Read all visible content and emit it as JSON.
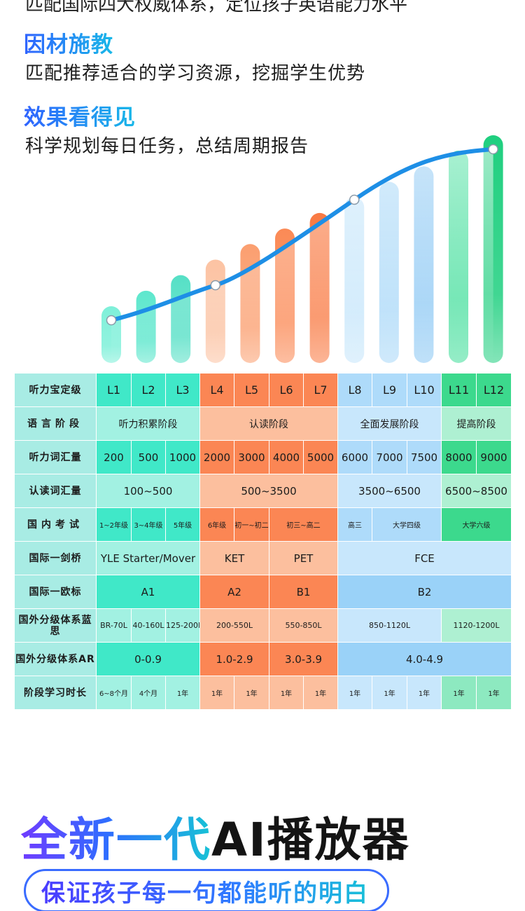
{
  "top_cut_text": "匹配国际四大权威体系，定位孩子英语能力水平",
  "features": [
    {
      "title": "因材施教",
      "desc": "匹配推荐适合的学习资源，挖掘学生优势"
    },
    {
      "title": "效果看得见",
      "desc": "科学规划每日任务，总结周期报告"
    }
  ],
  "chart_data": {
    "type": "bar",
    "categories": [
      "L1",
      "L2",
      "L3",
      "L4",
      "L5",
      "L6",
      "L7",
      "L8",
      "L9",
      "L10",
      "L11",
      "L12"
    ],
    "values": [
      1,
      2,
      3,
      4,
      5,
      6,
      7,
      8,
      9,
      10,
      11,
      12
    ],
    "bar_colors": [
      "#7ef0d9",
      "#5ee7cd",
      "#56e0c6",
      "#fcc3a3",
      "#fb9f70",
      "#fb8a56",
      "#f97a43",
      "#c6e6fb",
      "#a9d8f8",
      "#8cc8f4",
      "#40de9a",
      "#1fcf7f"
    ],
    "trend_line_color": "#1e8fe6"
  },
  "table": {
    "rows": [
      {
        "header": "听力宝定级",
        "cells": [
          {
            "text": "L1",
            "span": 1,
            "cls": "g1 f16"
          },
          {
            "text": "L2",
            "span": 1,
            "cls": "g1 f16"
          },
          {
            "text": "L3",
            "span": 1,
            "cls": "g1 f16"
          },
          {
            "text": "L4",
            "span": 1,
            "cls": "o1 f16"
          },
          {
            "text": "L5",
            "span": 1,
            "cls": "o1 f16"
          },
          {
            "text": "L6",
            "span": 1,
            "cls": "o1 f16"
          },
          {
            "text": "L7",
            "span": 1,
            "cls": "o1 f16"
          },
          {
            "text": "L8",
            "span": 1,
            "cls": "b1 f16"
          },
          {
            "text": "L9",
            "span": 1,
            "cls": "b1 f16"
          },
          {
            "text": "L10",
            "span": 1,
            "cls": "b1 f16"
          },
          {
            "text": "L11",
            "span": 1,
            "cls": "e1 f16"
          },
          {
            "text": "L12",
            "span": 1,
            "cls": "e1 f16"
          }
        ]
      },
      {
        "header": "语言阶段",
        "cells": [
          {
            "text": "听力积累阶段",
            "span": 3,
            "cls": "g2 f14"
          },
          {
            "text": "认读阶段",
            "span": 4,
            "cls": "o2 f14"
          },
          {
            "text": "全面发展阶段",
            "span": 3,
            "cls": "b3 f14"
          },
          {
            "text": "提高阶段",
            "span": 2,
            "cls": "e3 f14"
          }
        ]
      },
      {
        "header": "听力词汇量",
        "cells": [
          {
            "text": "200",
            "span": 1,
            "cls": "g1 f15"
          },
          {
            "text": "500",
            "span": 1,
            "cls": "g1 f15"
          },
          {
            "text": "1000",
            "span": 1,
            "cls": "g1 f15"
          },
          {
            "text": "2000",
            "span": 1,
            "cls": "o1 f15"
          },
          {
            "text": "3000",
            "span": 1,
            "cls": "o1 f15"
          },
          {
            "text": "4000",
            "span": 1,
            "cls": "o1 f15"
          },
          {
            "text": "5000",
            "span": 1,
            "cls": "o1 f15"
          },
          {
            "text": "6000",
            "span": 1,
            "cls": "b1 f15"
          },
          {
            "text": "7000",
            "span": 1,
            "cls": "b1 f15"
          },
          {
            "text": "7500",
            "span": 1,
            "cls": "b1 f15"
          },
          {
            "text": "8000",
            "span": 1,
            "cls": "e1 f15"
          },
          {
            "text": "9000",
            "span": 1,
            "cls": "e1 f15"
          }
        ]
      },
      {
        "header": "认读词汇量",
        "cells": [
          {
            "text": "100~500",
            "span": 3,
            "cls": "g2 f15"
          },
          {
            "text": "500~3500",
            "span": 4,
            "cls": "o2 f15"
          },
          {
            "text": "3500~6500",
            "span": 3,
            "cls": "b3 f15"
          },
          {
            "text": "6500~8500",
            "span": 2,
            "cls": "e3 f15"
          }
        ]
      },
      {
        "header": "国内考试",
        "cells": [
          {
            "text": "1~2年级",
            "span": 1,
            "cls": "g1 f10"
          },
          {
            "text": "3~4年级",
            "span": 1,
            "cls": "g1 f10"
          },
          {
            "text": "5年级",
            "span": 1,
            "cls": "g1 f10"
          },
          {
            "text": "6年级",
            "span": 1,
            "cls": "o1 f10"
          },
          {
            "text": "初一~初二",
            "span": 1,
            "cls": "o1 f10"
          },
          {
            "text": "初三~高二",
            "span": 2,
            "cls": "o1 f10"
          },
          {
            "text": "高三",
            "span": 1,
            "cls": "b1 f10"
          },
          {
            "text": "大学四级",
            "span": 2,
            "cls": "b1 f10"
          },
          {
            "text": "大学六级",
            "span": 2,
            "cls": "e1 f10"
          }
        ]
      },
      {
        "header": "国际一剑桥",
        "cells": [
          {
            "text": "YLE Starter/Mover",
            "span": 3,
            "cls": "g2 f15"
          },
          {
            "text": "KET",
            "span": 2,
            "cls": "o2 f15"
          },
          {
            "text": "PET",
            "span": 2,
            "cls": "o2 f15"
          },
          {
            "text": "FCE",
            "span": 5,
            "cls": "b3 f15"
          }
        ]
      },
      {
        "header": "国际一欧标",
        "cells": [
          {
            "text": "A1",
            "span": 3,
            "cls": "g1 f15"
          },
          {
            "text": "A2",
            "span": 2,
            "cls": "o1 f15"
          },
          {
            "text": "B1",
            "span": 2,
            "cls": "o1 f15"
          },
          {
            "text": "B2",
            "span": 5,
            "cls": "b2 f15"
          }
        ]
      },
      {
        "header": "国外分级体系蓝思",
        "cells": [
          {
            "text": "BR-70L",
            "span": 1,
            "cls": "g2 f11"
          },
          {
            "text": "40-160L",
            "span": 1,
            "cls": "g2 f11"
          },
          {
            "text": "125-200L",
            "span": 1,
            "cls": "g2 f11"
          },
          {
            "text": "200-550L",
            "span": 2,
            "cls": "o2 f11"
          },
          {
            "text": "550-850L",
            "span": 2,
            "cls": "o2 f11"
          },
          {
            "text": "850-1120L",
            "span": 3,
            "cls": "b3 f11"
          },
          {
            "text": "1120-1200L",
            "span": 2,
            "cls": "e3 f11"
          }
        ]
      },
      {
        "header": "国外分级体系AR",
        "cells": [
          {
            "text": "0-0.9",
            "span": 3,
            "cls": "g1 f15"
          },
          {
            "text": "1.0-2.9",
            "span": 2,
            "cls": "o1 f15"
          },
          {
            "text": "3.0-3.9",
            "span": 2,
            "cls": "o1 f15"
          },
          {
            "text": "4.0-4.9",
            "span": 5,
            "cls": "b2 f15"
          }
        ]
      },
      {
        "header": "阶段学习时长",
        "cells": [
          {
            "text": "6~8个月",
            "span": 1,
            "cls": "g2 f10"
          },
          {
            "text": "4个月",
            "span": 1,
            "cls": "g2 f10"
          },
          {
            "text": "1年",
            "span": 1,
            "cls": "g2 f10"
          },
          {
            "text": "1年",
            "span": 1,
            "cls": "o2 f10"
          },
          {
            "text": "1年",
            "span": 1,
            "cls": "o2 f10"
          },
          {
            "text": "1年",
            "span": 1,
            "cls": "o2 f10"
          },
          {
            "text": "1年",
            "span": 1,
            "cls": "o2 f10"
          },
          {
            "text": "1年",
            "span": 1,
            "cls": "b3 f10"
          },
          {
            "text": "1年",
            "span": 1,
            "cls": "b3 f10"
          },
          {
            "text": "1年",
            "span": 1,
            "cls": "b3 f10"
          },
          {
            "text": "1年",
            "span": 1,
            "cls": "e2 f10"
          },
          {
            "text": "1年",
            "span": 1,
            "cls": "e2 f10"
          }
        ]
      }
    ]
  },
  "ai_section": {
    "title_part1": "全新一代",
    "title_part2": "AI播放器",
    "subtitle": "保证孩子每一句都能听的明白"
  }
}
